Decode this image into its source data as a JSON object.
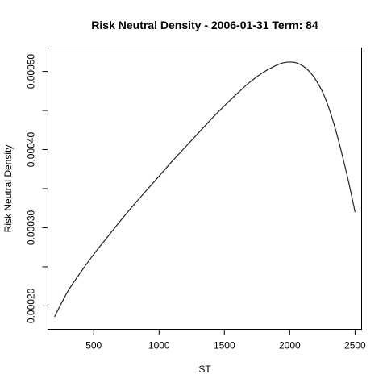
{
  "chart_data": {
    "type": "line",
    "title": "Risk Neutral Density -  2006-01-31 Term: 84",
    "xlabel": "ST",
    "ylabel": "Risk Neutral Density",
    "xlim": [
      150,
      2550
    ],
    "ylim": [
      0.00017,
      0.00053
    ],
    "x_ticks": [
      500,
      1000,
      1500,
      2000,
      2500
    ],
    "x_tick_labels": [
      "500",
      "1000",
      "1500",
      "2000",
      "2500"
    ],
    "y_ticks": [
      0.0002,
      0.0003,
      0.0004,
      0.0005
    ],
    "y_tick_labels": [
      "0.00020",
      "0.00030",
      "0.00040",
      "0.00050"
    ],
    "y_minor_ticks": [
      0.00025,
      0.00035,
      0.00045
    ],
    "grid": false,
    "legend": "none",
    "line_color": "#222222",
    "series": [
      {
        "x": [
          200,
          300,
          400,
          500,
          600,
          700,
          800,
          900,
          1000,
          1100,
          1200,
          1300,
          1400,
          1500,
          1600,
          1700,
          1800,
          1900,
          1950,
          2000,
          2050,
          2100,
          2150,
          2200,
          2250,
          2300,
          2350,
          2400,
          2450,
          2500
        ],
        "values": [
          0.000186,
          0.000218,
          0.000243,
          0.000266,
          0.000287,
          0.000308,
          0.000328,
          0.000347,
          0.000366,
          0.000385,
          0.000403,
          0.000421,
          0.000439,
          0.000456,
          0.000472,
          0.000487,
          0.000499,
          0.000508,
          0.000511,
          0.000512,
          0.000511,
          0.000507,
          0.0005,
          0.000489,
          0.000474,
          0.000453,
          0.000426,
          0.000394,
          0.000359,
          0.00032
        ]
      }
    ]
  }
}
